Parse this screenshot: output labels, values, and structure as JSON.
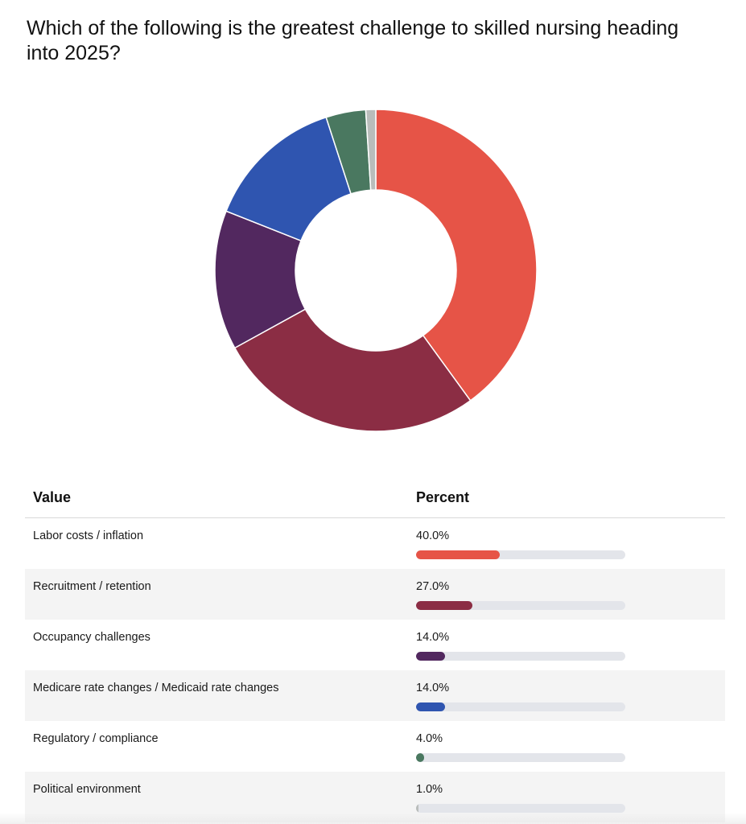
{
  "chart_data": {
    "type": "pie",
    "title": "Which of the following is the greatest challenge to skilled nursing heading into 2025?",
    "value_header": "Value",
    "percent_header": "Percent",
    "slices": [
      {
        "label": "Labor costs / inflation",
        "value": 40.0,
        "display": "40.0%",
        "color": "#e65447"
      },
      {
        "label": "Recruitment / retention",
        "value": 27.0,
        "display": "27.0%",
        "color": "#8b2d44"
      },
      {
        "label": "Occupancy challenges",
        "value": 14.0,
        "display": "14.0%",
        "color": "#52285f"
      },
      {
        "label": "Medicare rate changes / Medicaid rate changes",
        "value": 14.0,
        "display": "14.0%",
        "color": "#2f55b0"
      },
      {
        "label": "Regulatory / compliance",
        "value": 4.0,
        "display": "4.0%",
        "color": "#4a7860"
      },
      {
        "label": "Political environment",
        "value": 1.0,
        "display": "1.0%",
        "color": "#b9bdbb"
      }
    ]
  }
}
